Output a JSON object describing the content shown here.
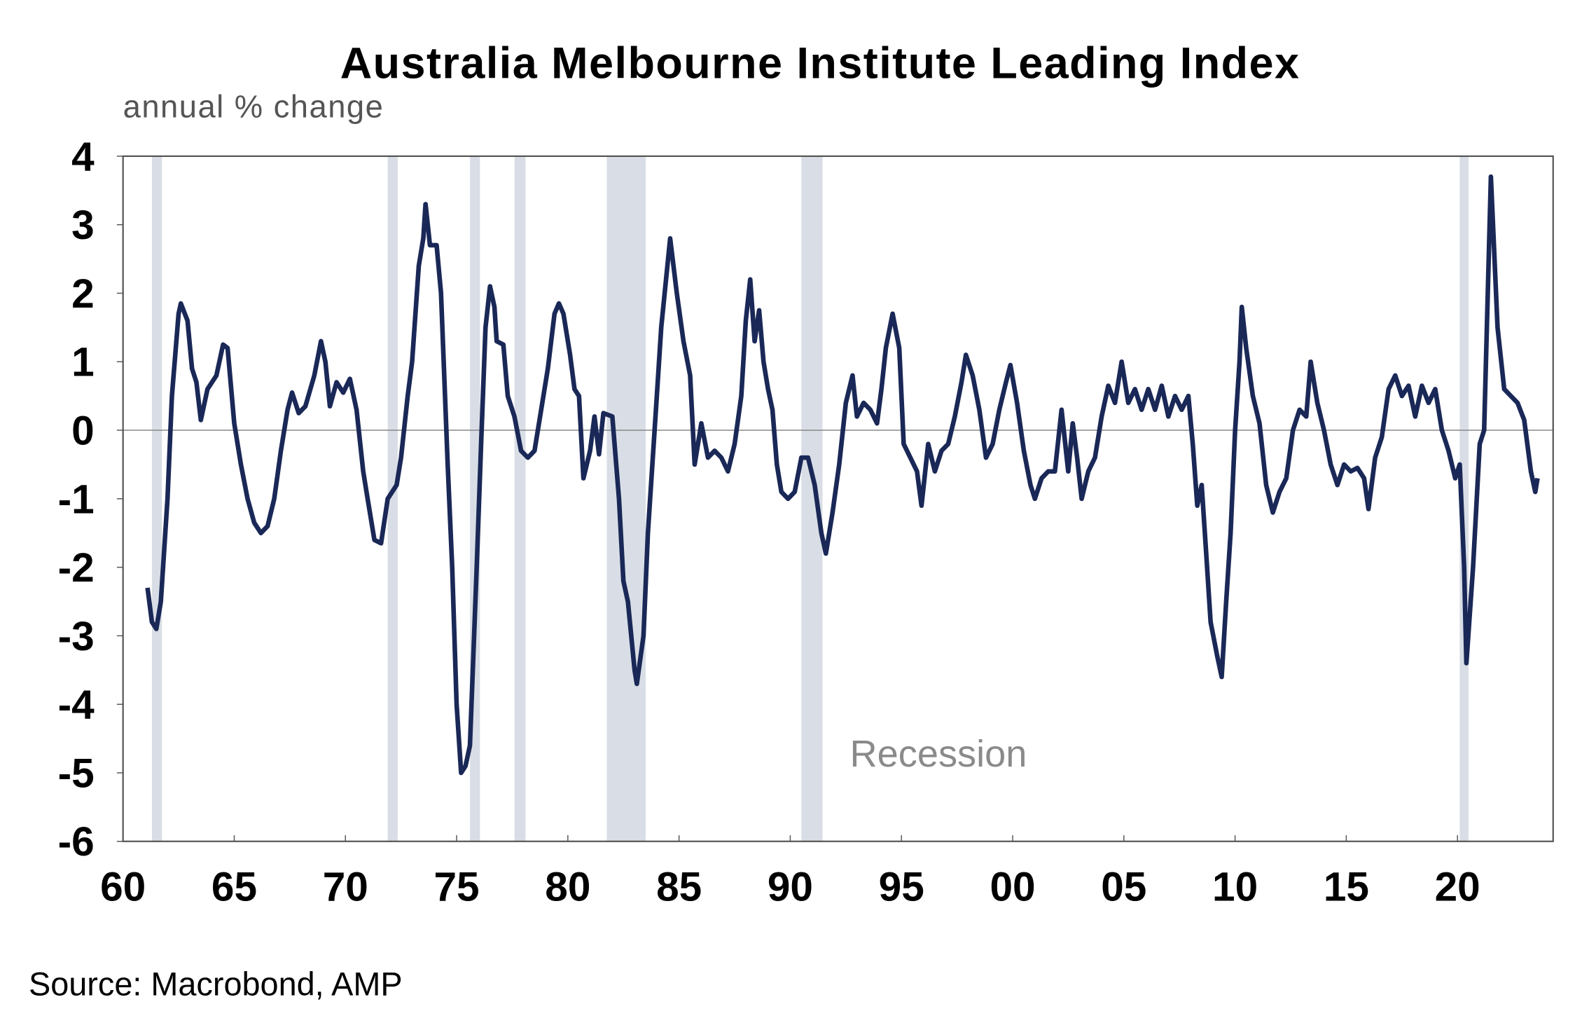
{
  "chart_data": {
    "type": "line",
    "title": "Australia Melbourne Institute Leading Index",
    "subtitle": "annual % change",
    "xlabel": "",
    "ylabel": "",
    "xlim": [
      1960,
      2024.3
    ],
    "ylim": [
      -6,
      4
    ],
    "x_ticks": [
      1960,
      1965,
      1970,
      1975,
      1980,
      1985,
      1990,
      1995,
      2000,
      2005,
      2010,
      2015,
      2020
    ],
    "x_tick_labels": [
      "60",
      "65",
      "70",
      "75",
      "80",
      "85",
      "90",
      "95",
      "00",
      "05",
      "10",
      "15",
      "20"
    ],
    "y_ticks": [
      4,
      3,
      2,
      1,
      0,
      -1,
      -2,
      -3,
      -4,
      -5,
      -6
    ],
    "y_tick_labels": [
      "4",
      "3",
      "2",
      "1",
      "0",
      "-1",
      "-2",
      "-3",
      "-4",
      "-5",
      "-6"
    ],
    "grid": false,
    "zero_line": true,
    "series_color": "#1a2857",
    "recession_color": "#d9dee6",
    "recession_label": "Recession",
    "recessions": [
      [
        1961.3,
        1961.75
      ],
      [
        1971.9,
        1972.35
      ],
      [
        1975.6,
        1976.05
      ],
      [
        1977.6,
        1978.1
      ],
      [
        1981.75,
        1983.5
      ],
      [
        1990.5,
        1991.45
      ],
      [
        2020.1,
        2020.5
      ]
    ],
    "series": [
      {
        "name": "Melbourne Institute Leading Index",
        "points": [
          [
            1961.1,
            -2.3
          ],
          [
            1961.3,
            -2.8
          ],
          [
            1961.5,
            -2.9
          ],
          [
            1961.7,
            -2.5
          ],
          [
            1962.0,
            -1.0
          ],
          [
            1962.2,
            0.5
          ],
          [
            1962.5,
            1.7
          ],
          [
            1962.6,
            1.85
          ],
          [
            1962.9,
            1.6
          ],
          [
            1963.1,
            0.9
          ],
          [
            1963.3,
            0.7
          ],
          [
            1963.5,
            0.15
          ],
          [
            1963.8,
            0.6
          ],
          [
            1964.2,
            0.8
          ],
          [
            1964.5,
            1.25
          ],
          [
            1964.7,
            1.2
          ],
          [
            1965.0,
            0.1
          ],
          [
            1965.3,
            -0.5
          ],
          [
            1965.6,
            -1.0
          ],
          [
            1965.9,
            -1.35
          ],
          [
            1966.2,
            -1.5
          ],
          [
            1966.5,
            -1.4
          ],
          [
            1966.8,
            -1.0
          ],
          [
            1967.1,
            -0.3
          ],
          [
            1967.4,
            0.3
          ],
          [
            1967.6,
            0.55
          ],
          [
            1967.9,
            0.25
          ],
          [
            1968.2,
            0.35
          ],
          [
            1968.6,
            0.8
          ],
          [
            1968.9,
            1.3
          ],
          [
            1969.1,
            1.0
          ],
          [
            1969.3,
            0.35
          ],
          [
            1969.6,
            0.7
          ],
          [
            1969.9,
            0.55
          ],
          [
            1970.2,
            0.75
          ],
          [
            1970.5,
            0.3
          ],
          [
            1970.8,
            -0.6
          ],
          [
            1971.0,
            -1.0
          ],
          [
            1971.3,
            -1.6
          ],
          [
            1971.6,
            -1.65
          ],
          [
            1971.9,
            -1.0
          ],
          [
            1972.3,
            -0.8
          ],
          [
            1972.5,
            -0.4
          ],
          [
            1972.8,
            0.5
          ],
          [
            1973.0,
            1.0
          ],
          [
            1973.3,
            2.4
          ],
          [
            1973.5,
            2.8
          ],
          [
            1973.6,
            3.3
          ],
          [
            1973.8,
            2.7
          ],
          [
            1974.1,
            2.7
          ],
          [
            1974.3,
            2.0
          ],
          [
            1974.6,
            -0.5
          ],
          [
            1974.8,
            -2.0
          ],
          [
            1975.0,
            -4.0
          ],
          [
            1975.2,
            -5.0
          ],
          [
            1975.4,
            -4.9
          ],
          [
            1975.6,
            -4.6
          ],
          [
            1975.9,
            -2.0
          ],
          [
            1976.1,
            -0.2
          ],
          [
            1976.3,
            1.5
          ],
          [
            1976.5,
            2.1
          ],
          [
            1976.7,
            1.8
          ],
          [
            1976.8,
            1.3
          ],
          [
            1977.1,
            1.25
          ],
          [
            1977.3,
            0.5
          ],
          [
            1977.6,
            0.2
          ],
          [
            1977.9,
            -0.3
          ],
          [
            1978.2,
            -0.4
          ],
          [
            1978.5,
            -0.3
          ],
          [
            1978.8,
            0.3
          ],
          [
            1979.1,
            0.9
          ],
          [
            1979.4,
            1.7
          ],
          [
            1979.6,
            1.85
          ],
          [
            1979.8,
            1.7
          ],
          [
            1980.1,
            1.1
          ],
          [
            1980.3,
            0.6
          ],
          [
            1980.5,
            0.5
          ],
          [
            1980.7,
            -0.7
          ],
          [
            1981.0,
            -0.3
          ],
          [
            1981.2,
            0.2
          ],
          [
            1981.4,
            -0.35
          ],
          [
            1981.6,
            0.25
          ],
          [
            1982.0,
            0.2
          ],
          [
            1982.3,
            -1.0
          ],
          [
            1982.5,
            -2.2
          ],
          [
            1982.7,
            -2.5
          ],
          [
            1983.0,
            -3.5
          ],
          [
            1983.1,
            -3.7
          ],
          [
            1983.4,
            -3.0
          ],
          [
            1983.6,
            -1.5
          ],
          [
            1984.0,
            0.5
          ],
          [
            1984.2,
            1.5
          ],
          [
            1984.6,
            2.8
          ],
          [
            1984.9,
            2.0
          ],
          [
            1985.2,
            1.3
          ],
          [
            1985.5,
            0.8
          ],
          [
            1985.7,
            -0.5
          ],
          [
            1986.0,
            0.1
          ],
          [
            1986.3,
            -0.4
          ],
          [
            1986.6,
            -0.3
          ],
          [
            1986.9,
            -0.4
          ],
          [
            1987.2,
            -0.6
          ],
          [
            1987.5,
            -0.2
          ],
          [
            1987.8,
            0.5
          ],
          [
            1988.0,
            1.6
          ],
          [
            1988.2,
            2.2
          ],
          [
            1988.4,
            1.3
          ],
          [
            1988.6,
            1.75
          ],
          [
            1988.8,
            1.0
          ],
          [
            1989.0,
            0.6
          ],
          [
            1989.2,
            0.3
          ],
          [
            1989.4,
            -0.5
          ],
          [
            1989.6,
            -0.9
          ],
          [
            1989.9,
            -1.0
          ],
          [
            1990.2,
            -0.9
          ],
          [
            1990.5,
            -0.4
          ],
          [
            1990.8,
            -0.4
          ],
          [
            1991.1,
            -0.8
          ],
          [
            1991.4,
            -1.5
          ],
          [
            1991.6,
            -1.8
          ],
          [
            1991.9,
            -1.2
          ],
          [
            1992.2,
            -0.5
          ],
          [
            1992.5,
            0.4
          ],
          [
            1992.8,
            0.8
          ],
          [
            1993.0,
            0.2
          ],
          [
            1993.3,
            0.4
          ],
          [
            1993.6,
            0.3
          ],
          [
            1993.9,
            0.1
          ],
          [
            1994.1,
            0.6
          ],
          [
            1994.3,
            1.2
          ],
          [
            1994.6,
            1.7
          ],
          [
            1994.9,
            1.2
          ],
          [
            1995.1,
            -0.2
          ],
          [
            1995.4,
            -0.4
          ],
          [
            1995.7,
            -0.6
          ],
          [
            1995.9,
            -1.1
          ],
          [
            1996.2,
            -0.2
          ],
          [
            1996.5,
            -0.6
          ],
          [
            1996.8,
            -0.3
          ],
          [
            1997.1,
            -0.2
          ],
          [
            1997.4,
            0.2
          ],
          [
            1997.7,
            0.7
          ],
          [
            1997.9,
            1.1
          ],
          [
            1998.2,
            0.8
          ],
          [
            1998.5,
            0.3
          ],
          [
            1998.8,
            -0.4
          ],
          [
            1999.1,
            -0.2
          ],
          [
            1999.4,
            0.3
          ],
          [
            1999.7,
            0.7
          ],
          [
            1999.9,
            0.95
          ],
          [
            2000.2,
            0.4
          ],
          [
            2000.5,
            -0.3
          ],
          [
            2000.8,
            -0.8
          ],
          [
            2001.0,
            -1.0
          ],
          [
            2001.3,
            -0.7
          ],
          [
            2001.6,
            -0.6
          ],
          [
            2001.9,
            -0.6
          ],
          [
            2002.2,
            0.3
          ],
          [
            2002.5,
            -0.6
          ],
          [
            2002.7,
            0.1
          ],
          [
            2002.9,
            -0.4
          ],
          [
            2003.1,
            -1.0
          ],
          [
            2003.4,
            -0.6
          ],
          [
            2003.7,
            -0.4
          ],
          [
            2004.0,
            0.2
          ],
          [
            2004.3,
            0.65
          ],
          [
            2004.6,
            0.4
          ],
          [
            2004.9,
            1.0
          ],
          [
            2005.2,
            0.4
          ],
          [
            2005.5,
            0.6
          ],
          [
            2005.8,
            0.3
          ],
          [
            2006.1,
            0.6
          ],
          [
            2006.4,
            0.3
          ],
          [
            2006.7,
            0.65
          ],
          [
            2007.0,
            0.2
          ],
          [
            2007.3,
            0.5
          ],
          [
            2007.6,
            0.3
          ],
          [
            2007.9,
            0.5
          ],
          [
            2008.1,
            -0.2
          ],
          [
            2008.3,
            -1.1
          ],
          [
            2008.5,
            -0.8
          ],
          [
            2008.7,
            -1.8
          ],
          [
            2008.9,
            -2.8
          ],
          [
            2009.2,
            -3.3
          ],
          [
            2009.4,
            -3.6
          ],
          [
            2009.6,
            -2.5
          ],
          [
            2009.8,
            -1.5
          ],
          [
            2010.0,
            0.0
          ],
          [
            2010.2,
            1.0
          ],
          [
            2010.3,
            1.8
          ],
          [
            2010.5,
            1.2
          ],
          [
            2010.8,
            0.5
          ],
          [
            2011.1,
            0.1
          ],
          [
            2011.4,
            -0.8
          ],
          [
            2011.7,
            -1.2
          ],
          [
            2012.0,
            -0.9
          ],
          [
            2012.3,
            -0.7
          ],
          [
            2012.6,
            0.0
          ],
          [
            2012.9,
            0.3
          ],
          [
            2013.2,
            0.2
          ],
          [
            2013.4,
            1.0
          ],
          [
            2013.7,
            0.4
          ],
          [
            2014.0,
            0.0
          ],
          [
            2014.3,
            -0.5
          ],
          [
            2014.6,
            -0.8
          ],
          [
            2014.9,
            -0.5
          ],
          [
            2015.2,
            -0.6
          ],
          [
            2015.5,
            -0.55
          ],
          [
            2015.8,
            -0.7
          ],
          [
            2016.0,
            -1.15
          ],
          [
            2016.3,
            -0.4
          ],
          [
            2016.6,
            -0.1
          ],
          [
            2016.9,
            0.6
          ],
          [
            2017.2,
            0.8
          ],
          [
            2017.5,
            0.5
          ],
          [
            2017.8,
            0.65
          ],
          [
            2018.1,
            0.2
          ],
          [
            2018.4,
            0.65
          ],
          [
            2018.7,
            0.4
          ],
          [
            2019.0,
            0.6
          ],
          [
            2019.3,
            0.0
          ],
          [
            2019.6,
            -0.3
          ],
          [
            2019.9,
            -0.7
          ],
          [
            2020.1,
            -0.5
          ],
          [
            2020.3,
            -2.0
          ],
          [
            2020.4,
            -3.4
          ],
          [
            2020.7,
            -2.0
          ],
          [
            2021.0,
            -0.2
          ],
          [
            2021.2,
            0.0
          ],
          [
            2021.5,
            3.7
          ],
          [
            2021.8,
            1.5
          ],
          [
            2022.1,
            0.6
          ],
          [
            2022.4,
            0.5
          ],
          [
            2022.7,
            0.4
          ],
          [
            2023.0,
            0.15
          ],
          [
            2023.3,
            -0.6
          ],
          [
            2023.5,
            -0.9
          ],
          [
            2023.6,
            -0.7
          ]
        ]
      }
    ],
    "source": "Source: Macrobond, AMP"
  }
}
